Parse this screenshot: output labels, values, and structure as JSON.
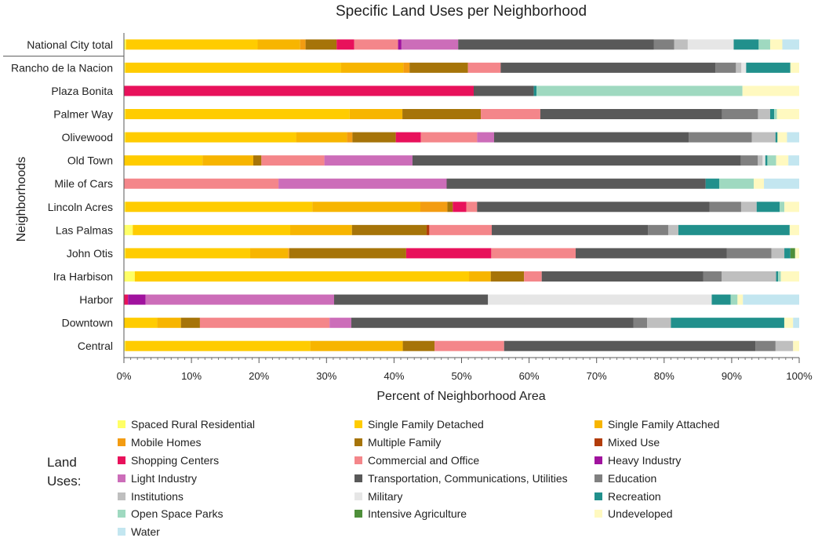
{
  "chart_data": {
    "type": "bar",
    "orientation": "horizontal",
    "stacked": true,
    "title": "Specific Land Uses per Neighborhood",
    "xlabel": "Percent of Neighborhood Area",
    "ylabel": "Neighborhoods",
    "xlim": [
      0,
      100
    ],
    "xticks": [
      "0%",
      "10%",
      "20%",
      "30%",
      "40%",
      "50%",
      "60%",
      "70%",
      "80%",
      "90%",
      "100%"
    ],
    "legend_title": "Land Uses:",
    "legend_title_lines": [
      "Land",
      "Uses:"
    ],
    "categories": [
      "National City total",
      "Rancho de la Nacion",
      "Plaza Bonita",
      "Palmer Way",
      "Olivewood",
      "Old Town",
      "Mile of Cars",
      "Lincoln Acres",
      "Las Palmas",
      "John Otis",
      "Ira Harbison",
      "Harbor",
      "Downtown",
      "Central"
    ],
    "series": [
      {
        "name": "Spaced Rural Residential",
        "color": "#ffff66",
        "values": [
          0.3,
          0.2,
          0,
          0.2,
          0.2,
          0,
          0,
          0.2,
          1.3,
          0.2,
          1.6,
          0,
          0,
          0.2
        ]
      },
      {
        "name": "Single Family Detached",
        "color": "#ffcc00",
        "values": [
          19.5,
          31.7,
          0,
          33.2,
          25.2,
          11.6,
          0,
          27.7,
          23.2,
          18.5,
          49.2,
          0,
          4.9,
          27.4
        ]
      },
      {
        "name": "Single Family Attached",
        "color": "#f7b500",
        "values": [
          6.3,
          9.2,
          0,
          7.8,
          7.5,
          7.5,
          0,
          16.0,
          9.1,
          5.6,
          3.2,
          0,
          3.5,
          13.7
        ]
      },
      {
        "name": "Mobile Homes",
        "color": "#f39c12",
        "values": [
          0.8,
          0.9,
          0,
          0,
          0.8,
          0,
          0,
          4.0,
          0,
          0.2,
          0,
          0,
          0,
          0
        ]
      },
      {
        "name": "Multiple Family",
        "color": "#a67409",
        "values": [
          4.6,
          8.6,
          0,
          11.6,
          6.4,
          1.2,
          0,
          0.8,
          11.0,
          17.3,
          4.9,
          0,
          2.8,
          4.7
        ]
      },
      {
        "name": "Mixed Use",
        "color": "#b23c0a",
        "values": [
          0,
          0,
          0,
          0,
          0,
          0,
          0,
          0,
          0.4,
          0,
          0,
          0,
          0,
          0
        ]
      },
      {
        "name": "Shopping Centers",
        "color": "#e8115b",
        "values": [
          2.6,
          0,
          51.8,
          0,
          3.7,
          0,
          0,
          2.0,
          0,
          12.6,
          0,
          0.6,
          0,
          0
        ]
      },
      {
        "name": "Commercial and Office",
        "color": "#f4868a",
        "values": [
          6.5,
          4.8,
          0,
          8.8,
          8.3,
          9.3,
          22.8,
          1.6,
          9.2,
          12.5,
          2.6,
          0,
          19.1,
          10.3
        ]
      },
      {
        "name": "Heavy Industry",
        "color": "#a0129e",
        "values": [
          0.5,
          0,
          0,
          0,
          0,
          0,
          0,
          0,
          0,
          0,
          0,
          2.6,
          0,
          0
        ]
      },
      {
        "name": "Light Industry",
        "color": "#cc6db9",
        "values": [
          8.4,
          0,
          0,
          0,
          2.5,
          13.0,
          24.8,
          0,
          0,
          0,
          0,
          27.8,
          3.2,
          0
        ]
      },
      {
        "name": "Transportation, Communications, Utilities",
        "color": "#595959",
        "values": [
          29.0,
          31.6,
          8.9,
          26.9,
          28.7,
          48.5,
          38.2,
          34.4,
          23.0,
          22.4,
          23.8,
          22.7,
          41.6,
          37.2
        ]
      },
      {
        "name": "Education",
        "color": "#808080",
        "values": [
          3.0,
          3.0,
          0,
          5.3,
          9.3,
          2.5,
          0,
          4.7,
          3.0,
          6.6,
          2.7,
          0,
          2.0,
          3.0
        ]
      },
      {
        "name": "Institutions",
        "color": "#bfbfbf",
        "values": [
          2.0,
          0.8,
          0,
          1.8,
          3.5,
          0.7,
          0,
          2.3,
          1.5,
          1.9,
          8.0,
          0,
          3.5,
          2.6
        ]
      },
      {
        "name": "Military",
        "color": "#e6e6e6",
        "values": [
          6.8,
          0.7,
          0,
          0,
          0,
          0.4,
          0,
          0,
          0,
          0,
          0,
          33.0,
          0,
          0
        ]
      },
      {
        "name": "Recreation",
        "color": "#21908c",
        "values": [
          3.7,
          6.5,
          0.4,
          0.6,
          0.3,
          0.3,
          2.0,
          3.4,
          16.4,
          0.9,
          0.3,
          2.8,
          16.7,
          0
        ]
      },
      {
        "name": "Open Space Parks",
        "color": "#9fd9c0",
        "values": [
          1.7,
          0,
          30.5,
          0.4,
          0,
          1.3,
          5.1,
          0.7,
          0,
          0,
          0.4,
          1.0,
          0,
          0
        ]
      },
      {
        "name": "Intensive Agriculture",
        "color": "#4e8f3a",
        "values": [
          0,
          0,
          0,
          0,
          0,
          0,
          0,
          0,
          0,
          0.7,
          0,
          0,
          0,
          0
        ]
      },
      {
        "name": "Undeveloped",
        "color": "#fff9c0",
        "values": [
          1.8,
          1.3,
          8.4,
          3.3,
          1.4,
          1.8,
          1.5,
          2.2,
          1.4,
          0.6,
          2.7,
          0.8,
          1.3,
          0.9
        ]
      },
      {
        "name": "Water",
        "color": "#c3e6f0",
        "values": [
          2.5,
          0,
          0,
          0,
          1.8,
          1.6,
          5.2,
          0,
          0,
          0,
          0,
          8.3,
          0.9,
          0
        ]
      }
    ]
  }
}
